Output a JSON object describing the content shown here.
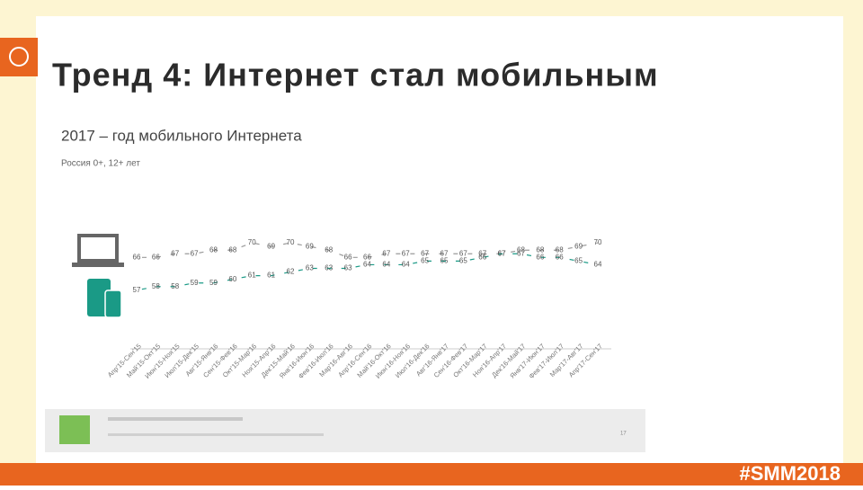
{
  "slide_title": "Тренд 4: Интернет стал мобильным",
  "hashtag": "#SMM2018",
  "page_number": "17",
  "chart_data": {
    "type": "line",
    "title": "2017 – год мобильного Интернета",
    "subtitle": "Россия 0+, 12+ лет",
    "categories": [
      "Апр'15-Сен'15",
      "Май'15-Окт'15",
      "Июн'15-Ноя'15",
      "Июл'15-Дек'15",
      "Авг'15-Янв'16",
      "Сен'15-Фев'16",
      "Окт'15-Мар'16",
      "Ноя'15-Апр'16",
      "Дек'15-Май'16",
      "Янв'16-Июн'16",
      "Фев'16-Июл'16",
      "Мар'16-Авг'16",
      "Апр'16-Сен'16",
      "Май'16-Окт'16",
      "Июн'16-Ноя'16",
      "Июл'16-Дек'16",
      "Авг'16-Янв'17",
      "Сен'16-Фев'17",
      "Окт'16-Мар'17",
      "Ноя'16-Апр'17",
      "Дек'16-Май'17",
      "Янв'17-Июн'17",
      "Фев'17-Июл'17",
      "Мар'17-Авг'17",
      "Апр'17-Сен'17"
    ],
    "series": [
      {
        "color": "#9a9a9a",
        "values": [
          66,
          66,
          67,
          67,
          68,
          68,
          70,
          69,
          70,
          69,
          68,
          66,
          66,
          67,
          67,
          67,
          67,
          67,
          67,
          67,
          68,
          68,
          68,
          69,
          70
        ]
      },
      {
        "color": "#1a9a86",
        "values": [
          57,
          58,
          58,
          59,
          59,
          60,
          61,
          61,
          62,
          63,
          63,
          63,
          64,
          64,
          64,
          65,
          65,
          65,
          66,
          67,
          67,
          66,
          66,
          65,
          64
        ]
      }
    ],
    "ylim": [
      54,
      72
    ]
  }
}
